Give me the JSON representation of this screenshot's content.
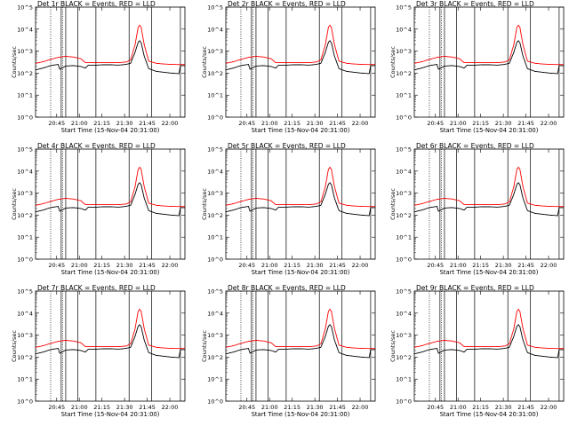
{
  "colors": {
    "events": "#000000",
    "lld": "#ff0000",
    "background": "#ffffff"
  },
  "chart_data": [
    {
      "type": "line",
      "title": "Det 1r BLACK = Events, RED = LLD",
      "ylabel": "Counts/sec",
      "xlabel": "Start Time (15-Nov-04 20:31:00)",
      "x_ticks": [
        "20:45",
        "21:00",
        "21:15",
        "21:30",
        "21:45",
        "22:00"
      ],
      "y_ticks": [
        "10^0",
        "10^1",
        "10^2",
        "10^3",
        "10^4",
        "10^5"
      ],
      "y_scale": "log",
      "ylim": [
        1,
        100000
      ],
      "xlim_minutes": [
        0,
        99
      ],
      "series_names": [
        "Events",
        "LLD"
      ]
    },
    {
      "type": "line",
      "title": "Det 2r BLACK = Events, RED = LLD",
      "ylabel": "Counts/sec",
      "xlabel": "Start Time (15-Nov-04 20:31:00)",
      "x_ticks": [
        "20:45",
        "21:00",
        "21:15",
        "21:30",
        "21:45",
        "22:00"
      ],
      "y_ticks": [
        "10^0",
        "10^1",
        "10^2",
        "10^3",
        "10^4",
        "10^5"
      ],
      "y_scale": "log",
      "ylim": [
        1,
        100000
      ],
      "xlim_minutes": [
        0,
        99
      ],
      "series_names": [
        "Events",
        "LLD"
      ]
    },
    {
      "type": "line",
      "title": "Det 3r BLACK = Events, RED = LLD",
      "ylabel": "Counts/sec",
      "xlabel": "Start Time (15-Nov-04 20:31:00)",
      "x_ticks": [
        "20:45",
        "21:00",
        "21:15",
        "21:30",
        "21:45",
        "22:00"
      ],
      "y_ticks": [
        "10^0",
        "10^1",
        "10^2",
        "10^3",
        "10^4",
        "10^5"
      ],
      "y_scale": "log",
      "ylim": [
        1,
        100000
      ],
      "xlim_minutes": [
        0,
        99
      ],
      "series_names": [
        "Events",
        "LLD"
      ]
    },
    {
      "type": "line",
      "title": "Det 4r BLACK = Events, RED = LLD",
      "ylabel": "Counts/sec",
      "xlabel": "Start Time (15-Nov-04 20:31:00)",
      "x_ticks": [
        "20:45",
        "21:00",
        "21:15",
        "21:30",
        "21:45",
        "22:00"
      ],
      "y_ticks": [
        "10^0",
        "10^1",
        "10^2",
        "10^3",
        "10^4",
        "10^5"
      ],
      "y_scale": "log",
      "ylim": [
        1,
        100000
      ],
      "xlim_minutes": [
        0,
        99
      ],
      "series_names": [
        "Events",
        "LLD"
      ]
    },
    {
      "type": "line",
      "title": "Det 5r BLACK = Events, RED = LLD",
      "ylabel": "Counts/sec",
      "xlabel": "Start Time (15-Nov-04 20:31:00)",
      "x_ticks": [
        "20:45",
        "21:00",
        "21:15",
        "21:30",
        "21:45",
        "22:00"
      ],
      "y_ticks": [
        "10^0",
        "10^1",
        "10^2",
        "10^3",
        "10^4",
        "10^5"
      ],
      "y_scale": "log",
      "ylim": [
        1,
        100000
      ],
      "xlim_minutes": [
        0,
        99
      ],
      "series_names": [
        "Events",
        "LLD"
      ]
    },
    {
      "type": "line",
      "title": "Det 6r BLACK = Events, RED = LLD",
      "ylabel": "Counts/sec",
      "xlabel": "Start Time (15-Nov-04 20:31:00)",
      "x_ticks": [
        "20:45",
        "21:00",
        "21:15",
        "21:30",
        "21:45",
        "22:00"
      ],
      "y_ticks": [
        "10^0",
        "10^1",
        "10^2",
        "10^3",
        "10^4",
        "10^5"
      ],
      "y_scale": "log",
      "ylim": [
        1,
        100000
      ],
      "xlim_minutes": [
        0,
        99
      ],
      "series_names": [
        "Events",
        "LLD"
      ]
    },
    {
      "type": "line",
      "title": "Det 7r BLACK = Events, RED = LLD",
      "ylabel": "Counts/sec",
      "xlabel": "Start Time (15-Nov-04 20:31:00)",
      "x_ticks": [
        "20:45",
        "21:00",
        "21:15",
        "21:30",
        "21:45",
        "22:00"
      ],
      "y_ticks": [
        "10^0",
        "10^1",
        "10^2",
        "10^3",
        "10^4",
        "10^5"
      ],
      "y_scale": "log",
      "ylim": [
        1,
        100000
      ],
      "xlim_minutes": [
        0,
        99
      ],
      "series_names": [
        "Events",
        "LLD"
      ]
    },
    {
      "type": "line",
      "title": "Det 8r BLACK = Events, RED = LLD",
      "ylabel": "Counts/sec",
      "xlabel": "Start Time (15-Nov-04 20:31:00)",
      "x_ticks": [
        "20:45",
        "21:00",
        "21:15",
        "21:30",
        "21:45",
        "22:00"
      ],
      "y_ticks": [
        "10^0",
        "10^1",
        "10^2",
        "10^3",
        "10^4",
        "10^5"
      ],
      "y_scale": "log",
      "ylim": [
        1,
        100000
      ],
      "xlim_minutes": [
        0,
        99
      ],
      "series_names": [
        "Events",
        "LLD"
      ]
    },
    {
      "type": "line",
      "title": "Det 9r BLACK = Events, RED = LLD",
      "ylabel": "Counts/sec",
      "xlabel": "Start Time (15-Nov-04 20:31:00)",
      "x_ticks": [
        "20:45",
        "21:00",
        "21:15",
        "21:30",
        "21:45",
        "22:00"
      ],
      "y_ticks": [
        "10^0",
        "10^1",
        "10^2",
        "10^3",
        "10^4",
        "10^5"
      ],
      "y_scale": "log",
      "ylim": [
        1,
        100000
      ],
      "xlim_minutes": [
        0,
        99
      ],
      "series_names": [
        "Events",
        "LLD"
      ]
    }
  ],
  "time_markers_minutes": {
    "dotted": [
      10,
      18
    ],
    "solid": [
      17,
      20,
      28,
      40,
      62,
      77,
      96
    ]
  },
  "series_shape": {
    "lld": [
      [
        0,
        280
      ],
      [
        5,
        330
      ],
      [
        10,
        420
      ],
      [
        15,
        520
      ],
      [
        20,
        580
      ],
      [
        25,
        540
      ],
      [
        30,
        450
      ],
      [
        33,
        300
      ],
      [
        37,
        300
      ],
      [
        40,
        300
      ],
      [
        45,
        300
      ],
      [
        50,
        300
      ],
      [
        55,
        300
      ],
      [
        60,
        320
      ],
      [
        63,
        400
      ],
      [
        66,
        2000
      ],
      [
        68,
        12000
      ],
      [
        69,
        15000
      ],
      [
        70,
        12000
      ],
      [
        72,
        2000
      ],
      [
        75,
        350
      ],
      [
        80,
        280
      ],
      [
        85,
        260
      ],
      [
        90,
        250
      ],
      [
        95,
        245
      ],
      [
        99,
        245
      ]
    ],
    "events": [
      [
        0,
        140
      ],
      [
        5,
        170
      ],
      [
        10,
        220
      ],
      [
        15,
        250
      ],
      [
        16,
        150
      ],
      [
        20,
        210
      ],
      [
        25,
        220
      ],
      [
        30,
        200
      ],
      [
        33,
        170
      ],
      [
        35,
        230
      ],
      [
        40,
        230
      ],
      [
        45,
        240
      ],
      [
        50,
        240
      ],
      [
        55,
        230
      ],
      [
        60,
        250
      ],
      [
        63,
        280
      ],
      [
        66,
        900
      ],
      [
        68,
        2500
      ],
      [
        69,
        3000
      ],
      [
        70,
        2400
      ],
      [
        72,
        600
      ],
      [
        75,
        160
      ],
      [
        80,
        120
      ],
      [
        85,
        110
      ],
      [
        90,
        100
      ],
      [
        95,
        95
      ],
      [
        96,
        220
      ],
      [
        99,
        220
      ]
    ]
  }
}
